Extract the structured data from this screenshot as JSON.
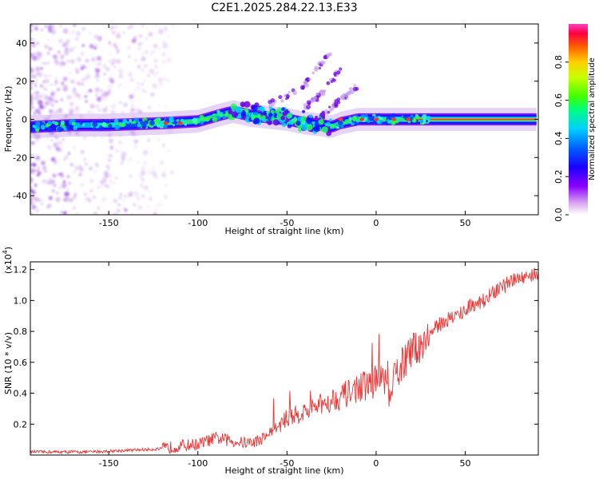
{
  "figure_title": "C2E1.2025.284.22.13.E33",
  "chart_data": [
    {
      "type": "heatmap",
      "name": "spectrogram",
      "xlabel": "Height of straight line (km)",
      "ylabel": "Frequency (Hz)",
      "xlim": [
        -194,
        91
      ],
      "ylim": [
        -50,
        50
      ],
      "x_ticks": [
        -150,
        -100,
        -50,
        0,
        50
      ],
      "y_ticks": [
        -40,
        -20,
        0,
        20,
        40
      ],
      "ridge": {
        "x": [
          -194,
          -170,
          -150,
          -120,
          -100,
          -85,
          -80,
          -70,
          -60,
          -50,
          -40,
          -30,
          -25,
          -20,
          -10,
          0,
          10,
          20,
          30,
          50,
          70,
          91
        ],
        "y": [
          -4,
          -3,
          -3,
          -2,
          -1,
          3,
          4,
          2,
          1,
          0,
          -2,
          -3,
          -4,
          -2,
          0,
          0,
          0,
          0,
          0,
          0,
          0,
          0
        ]
      },
      "branches": [
        {
          "x": [
            -60,
            -50,
            -40,
            -35,
            -30,
            -25
          ],
          "y": [
            8,
            12,
            18,
            24,
            30,
            36
          ]
        },
        {
          "x": [
            -40,
            -35,
            -30,
            -25,
            -20
          ],
          "y": [
            6,
            10,
            14,
            20,
            26
          ]
        },
        {
          "x": [
            -30,
            -25,
            -20,
            -15,
            -10
          ],
          "y": [
            2,
            6,
            10,
            14,
            18
          ]
        }
      ],
      "colorbar": {
        "label": "Normalized spectral amplitude",
        "range": [
          0,
          1
        ],
        "ticks": [
          0.0,
          0.2,
          0.4,
          0.6,
          0.8
        ]
      }
    },
    {
      "type": "line",
      "name": "snr",
      "xlabel": "Height of straight line (km)",
      "ylabel": "SNR (10 * v/v)",
      "multiplier": "(x10",
      "multiplier_exp": "4",
      "multiplier_close": ")",
      "xlim": [
        -194,
        91
      ],
      "ylim": [
        0,
        1.25
      ],
      "x_ticks": [
        -150,
        -100,
        -50,
        0,
        50
      ],
      "y_ticks": [
        0.2,
        0.4,
        0.6,
        0.8,
        1.0,
        1.2
      ],
      "series": [
        {
          "name": "SNR",
          "color": "#ee3333",
          "x": [
            -194,
            -180,
            -160,
            -140,
            -120,
            -110,
            -100,
            -95,
            -90,
            -85,
            -80,
            -75,
            -70,
            -65,
            -60,
            -55,
            -50,
            -45,
            -40,
            -35,
            -30,
            -25,
            -20,
            -15,
            -10,
            -5,
            0,
            5,
            8,
            10,
            15,
            20,
            25,
            30,
            35,
            40,
            45,
            50,
            55,
            60,
            65,
            70,
            75,
            80,
            85,
            91
          ],
          "values": [
            0.02,
            0.02,
            0.02,
            0.03,
            0.04,
            0.06,
            0.07,
            0.09,
            0.11,
            0.1,
            0.09,
            0.08,
            0.08,
            0.1,
            0.14,
            0.18,
            0.24,
            0.26,
            0.28,
            0.3,
            0.33,
            0.36,
            0.38,
            0.4,
            0.44,
            0.45,
            0.48,
            0.5,
            0.32,
            0.5,
            0.6,
            0.66,
            0.72,
            0.78,
            0.84,
            0.88,
            0.9,
            0.94,
            0.98,
            1.0,
            1.04,
            1.08,
            1.12,
            1.14,
            1.16,
            1.18
          ]
        }
      ]
    }
  ]
}
